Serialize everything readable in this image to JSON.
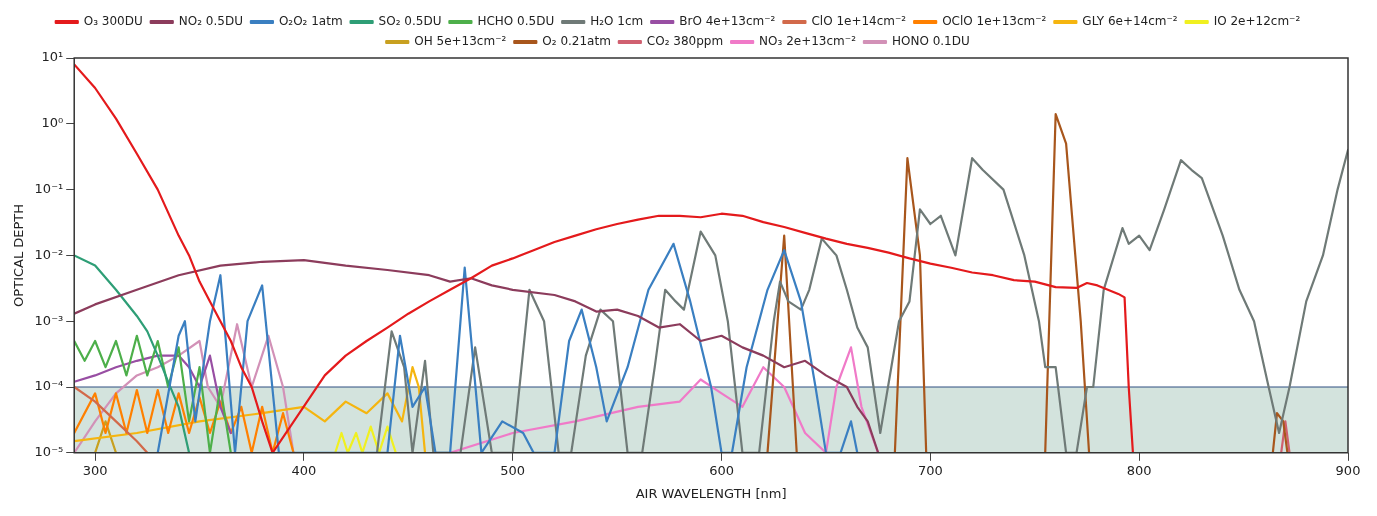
{
  "chart_data": {
    "type": "line",
    "xlabel": "AIR WAVELENGTH [nm]",
    "ylabel": "OPTICAL DEPTH",
    "log": "y",
    "grid": false,
    "legend": "top",
    "line_style": "solid",
    "marker": "none",
    "xlim": [
      290,
      900
    ],
    "xticks": [
      300,
      400,
      500,
      600,
      700,
      800,
      900
    ],
    "ylim": [
      1e-05,
      10
    ],
    "yticks": [
      {
        "value": 1e-05,
        "label": "10⁻⁵"
      },
      {
        "value": 0.0001,
        "label": "10⁻⁴"
      },
      {
        "value": 0.001,
        "label": "10⁻³"
      },
      {
        "value": 0.01,
        "label": "10⁻²"
      },
      {
        "value": 0.1,
        "label": "10⁻¹"
      },
      {
        "value": 1,
        "label": "10⁰"
      },
      {
        "value": 10,
        "label": "10¹"
      }
    ],
    "bands": [
      {
        "axis": "y",
        "from": 1e-05,
        "to": 0.0001,
        "color": "#d3e3dd"
      }
    ],
    "ref_lines": [
      {
        "axis": "y",
        "value": 0.0001,
        "color": "#2f4f80",
        "line_style": "solid"
      }
    ],
    "series": [
      {
        "name": "O₃ 300DU",
        "color": "#e41a1c",
        "x": [
          290,
          300,
          310,
          320,
          330,
          340,
          345,
          350,
          355,
          360,
          365,
          370,
          375,
          380,
          385,
          410,
          420,
          430,
          440,
          450,
          460,
          470,
          480,
          490,
          500,
          510,
          520,
          530,
          540,
          550,
          560,
          570,
          580,
          590,
          600,
          610,
          620,
          630,
          640,
          650,
          660,
          670,
          680,
          690,
          700,
          710,
          720,
          730,
          740,
          750,
          760,
          770,
          775,
          780,
          790,
          793,
          795,
          797
        ],
        "values": [
          8,
          3.5,
          1.2,
          0.35,
          0.1,
          0.02,
          0.01,
          0.004,
          0.002,
          0.001,
          0.0005,
          0.0002,
          0.0001,
          3e-05,
          1e-05,
          0.00015,
          0.0003,
          0.0005,
          0.0008,
          0.0013,
          0.002,
          0.003,
          0.0045,
          0.007,
          0.009,
          0.012,
          0.016,
          0.02,
          0.025,
          0.03,
          0.035,
          0.04,
          0.04,
          0.038,
          0.043,
          0.04,
          0.032,
          0.027,
          0.022,
          0.018,
          0.015,
          0.013,
          0.011,
          0.009,
          0.0075,
          0.0065,
          0.0055,
          0.005,
          0.0042,
          0.004,
          0.0033,
          0.0032,
          0.0038,
          0.0035,
          0.0026,
          0.0023,
          0.0001,
          1e-05
        ]
      },
      {
        "name": "NO₂ 0.5DU",
        "color": "#8c3c5c",
        "x": [
          290,
          300,
          320,
          340,
          360,
          380,
          400,
          420,
          440,
          460,
          470,
          480,
          490,
          500,
          520,
          530,
          540,
          550,
          560,
          570,
          580,
          590,
          600,
          610,
          620,
          630,
          640,
          650,
          660,
          665,
          670,
          675
        ],
        "values": [
          0.0013,
          0.0018,
          0.003,
          0.005,
          0.007,
          0.008,
          0.0085,
          0.007,
          0.006,
          0.005,
          0.004,
          0.0045,
          0.0035,
          0.003,
          0.0025,
          0.002,
          0.0014,
          0.0015,
          0.0012,
          0.0008,
          0.0009,
          0.0005,
          0.0006,
          0.0004,
          0.0003,
          0.0002,
          0.00025,
          0.00015,
          0.0001,
          5e-05,
          3e-05,
          1e-05
        ]
      },
      {
        "name": "O₂O₂ 1atm",
        "color": "#3a7fc1",
        "x": [
          330,
          340,
          343,
          348,
          355,
          360,
          367,
          373,
          380,
          388,
          440,
          446,
          452,
          458,
          463,
          470,
          477,
          485,
          495,
          505,
          510,
          520,
          527,
          533,
          540,
          545,
          555,
          565,
          577,
          585,
          595,
          600,
          605,
          612,
          622,
          630,
          638,
          645,
          650,
          657,
          662,
          665
        ],
        "values": [
          1e-05,
          0.0006,
          0.001,
          3e-05,
          0.001,
          0.005,
          1e-05,
          0.001,
          0.0035,
          1e-05,
          1e-05,
          0.0006,
          5e-05,
          0.0001,
          1e-05,
          1e-05,
          0.0065,
          1e-05,
          3e-05,
          2e-05,
          1e-05,
          1e-05,
          0.0005,
          0.0015,
          0.0002,
          3e-05,
          0.0002,
          0.003,
          0.015,
          0.002,
          0.0001,
          1e-05,
          1e-05,
          0.0002,
          0.003,
          0.012,
          0.002,
          0.0001,
          1e-05,
          1e-05,
          3e-05,
          1e-05
        ]
      },
      {
        "name": "SO₂ 0.5DU",
        "color": "#2e9e76",
        "x": [
          290,
          300,
          310,
          320,
          325,
          330,
          335,
          340,
          345
        ],
        "values": [
          0.01,
          0.007,
          0.003,
          0.0012,
          0.0007,
          0.0003,
          0.00012,
          5e-05,
          1e-05
        ]
      },
      {
        "name": "HCHO 0.5DU",
        "color": "#4daf4a",
        "x": [
          290,
          295,
          300,
          305,
          310,
          315,
          320,
          325,
          330,
          335,
          340,
          345,
          350,
          355,
          360,
          365
        ],
        "values": [
          0.0005,
          0.00025,
          0.0005,
          0.0002,
          0.0005,
          0.00015,
          0.0006,
          0.00015,
          0.0005,
          0.0001,
          0.0004,
          3e-05,
          0.0002,
          1e-05,
          0.0001,
          1e-05
        ]
      },
      {
        "name": "H₂O 1cm",
        "color": "#6f7a77",
        "x": [
          435,
          442,
          448,
          452,
          458,
          462,
          475,
          482,
          490,
          500,
          508,
          515,
          522,
          528,
          535,
          542,
          548,
          555,
          562,
          568,
          573,
          578,
          582,
          590,
          597,
          603,
          610,
          618,
          625,
          628,
          632,
          638,
          642,
          648,
          655,
          660,
          665,
          670,
          676,
          685,
          690,
          695,
          700,
          705,
          712,
          720,
          725,
          735,
          745,
          752,
          755,
          760,
          765,
          770,
          775,
          778,
          783,
          792,
          795,
          800,
          805,
          812,
          820,
          825,
          830,
          840,
          848,
          855,
          862,
          867,
          872,
          880,
          888,
          895,
          900
        ],
        "values": [
          1e-05,
          0.0007,
          0.0002,
          1e-05,
          0.00025,
          1e-05,
          1e-05,
          0.0004,
          1e-05,
          1e-05,
          0.003,
          0.001,
          1e-05,
          1e-05,
          0.0003,
          0.0015,
          0.001,
          1e-05,
          1e-05,
          0.0002,
          0.003,
          0.002,
          0.0015,
          0.023,
          0.01,
          0.001,
          1e-05,
          1e-05,
          0.001,
          0.004,
          0.002,
          0.0015,
          0.003,
          0.018,
          0.01,
          0.003,
          0.0008,
          0.0004,
          2e-05,
          0.001,
          0.002,
          0.05,
          0.03,
          0.04,
          0.01,
          0.3,
          0.2,
          0.1,
          0.01,
          0.001,
          0.0002,
          0.0002,
          1e-05,
          1e-05,
          0.0001,
          0.0001,
          0.003,
          0.026,
          0.015,
          0.02,
          0.012,
          0.05,
          0.28,
          0.2,
          0.15,
          0.02,
          0.003,
          0.001,
          0.0001,
          2e-05,
          0.0001,
          0.002,
          0.01,
          0.1,
          0.4
        ]
      },
      {
        "name": "BrO 4e+13cm⁻²",
        "color": "#984ea3",
        "x": [
          290,
          300,
          310,
          320,
          330,
          340,
          345,
          350,
          355,
          360,
          365
        ],
        "values": [
          0.00012,
          0.00015,
          0.0002,
          0.00025,
          0.0003,
          0.0003,
          0.0002,
          0.0001,
          0.0003,
          5e-05,
          2e-05
        ]
      },
      {
        "name": "ClO 1e+14cm⁻²",
        "color": "#d2694a",
        "x": [
          290,
          300,
          310,
          320,
          325
        ],
        "values": [
          0.0001,
          6e-05,
          3e-05,
          1.5e-05,
          1e-05
        ]
      },
      {
        "name": "OClO 1e+13cm⁻²",
        "color": "#ff8000",
        "x": [
          290,
          300,
          305,
          310,
          315,
          320,
          325,
          330,
          335,
          340,
          345,
          350,
          355,
          360,
          365,
          370,
          375,
          380,
          385,
          390,
          395
        ],
        "values": [
          2e-05,
          8e-05,
          2e-05,
          8e-05,
          2e-05,
          9e-05,
          2e-05,
          9e-05,
          2e-05,
          8e-05,
          2e-05,
          7e-05,
          2e-05,
          6e-05,
          2e-05,
          5e-05,
          1e-05,
          5e-05,
          1e-05,
          4e-05,
          1e-05
        ]
      },
      {
        "name": "GLY 6e+14cm⁻²",
        "color": "#f5b50f",
        "x": [
          290,
          320,
          350,
          380,
          400,
          410,
          420,
          430,
          440,
          447,
          452,
          455,
          458
        ],
        "values": [
          1.5e-05,
          2e-05,
          3e-05,
          4e-05,
          5e-05,
          3e-05,
          6e-05,
          4e-05,
          8e-05,
          3e-05,
          0.0002,
          0.0001,
          1e-05
        ]
      },
      {
        "name": "IO 2e+12cm⁻²",
        "color": "#f0f020",
        "x": [
          415,
          418,
          421,
          425,
          428,
          432,
          436,
          440,
          444
        ],
        "values": [
          1e-05,
          2e-05,
          1e-05,
          2e-05,
          1e-05,
          2.5e-05,
          1e-05,
          2.5e-05,
          1e-05
        ]
      },
      {
        "name": "OH 5e+13cm⁻²",
        "color": "#c8a020",
        "x": [
          300,
          305,
          310
        ],
        "values": [
          1e-05,
          3e-05,
          1e-05
        ]
      },
      {
        "name": "O₂ 0.21atm",
        "color": "#a8561c",
        "x": [
          622,
          630,
          636,
          637,
          683,
          689,
          695,
          698,
          699,
          755,
          760,
          765,
          772,
          776,
          777,
          864,
          866,
          869,
          871
        ],
        "values": [
          1e-05,
          0.02,
          1e-05,
          null,
          1e-05,
          0.3,
          0.01,
          1e-05,
          null,
          1e-05,
          1.4,
          0.5,
          0.001,
          1e-05,
          null,
          1e-05,
          4e-05,
          3e-05,
          1e-05
        ]
      },
      {
        "name": "CO₂ 380ppm",
        "color": "#d06070",
        "x": [
          868,
          870,
          872
        ],
        "values": [
          1e-05,
          3e-05,
          1e-05
        ]
      },
      {
        "name": "NO₃ 2e+13cm⁻²",
        "color": "#f07ac8",
        "x": [
          470,
          500,
          530,
          560,
          580,
          590,
          600,
          610,
          620,
          630,
          640,
          650,
          655,
          662,
          667,
          675
        ],
        "values": [
          1e-05,
          2e-05,
          3e-05,
          5e-05,
          6e-05,
          0.00013,
          8e-05,
          5e-05,
          0.0002,
          0.0001,
          2e-05,
          1e-05,
          0.0001,
          0.0004,
          5e-05,
          1e-05
        ]
      },
      {
        "name": "HONO 0.1DU",
        "color": "#d291b7",
        "x": [
          290,
          300,
          310,
          320,
          330,
          340,
          350,
          354,
          360,
          368,
          375,
          383,
          390,
          395
        ],
        "values": [
          1e-05,
          3e-05,
          8e-05,
          0.00015,
          0.0002,
          0.0003,
          0.0005,
          0.0001,
          5e-05,
          0.0009,
          0.0001,
          0.0006,
          0.0001,
          1e-05
        ]
      }
    ]
  }
}
